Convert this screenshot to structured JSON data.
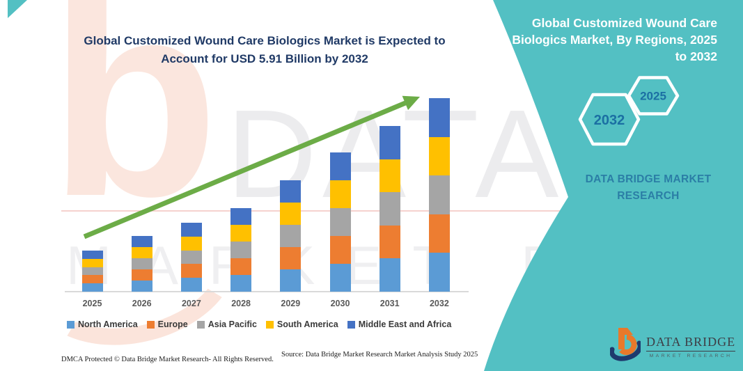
{
  "title": {
    "text": "Global Customized Wound Care Biologics Market is Expected to Account for USD 5.91 Billion by 2032"
  },
  "chart_data": {
    "type": "bar",
    "stacked": true,
    "unit": "USD Billion",
    "title": "Global Customized Wound Care Biologics Market is Expected to Account for USD 5.91 Billion by 2032",
    "categories": [
      "2025",
      "2026",
      "2027",
      "2028",
      "2029",
      "2030",
      "2031",
      "2032"
    ],
    "series": [
      {
        "name": "North America",
        "color": "#5B9BD5",
        "values": [
          0.25,
          0.34,
          0.42,
          0.51,
          0.68,
          0.85,
          1.01,
          1.18
        ]
      },
      {
        "name": "Europe",
        "color": "#ED7D31",
        "values": [
          0.25,
          0.34,
          0.42,
          0.51,
          0.68,
          0.85,
          1.01,
          1.18
        ]
      },
      {
        "name": "Asia Pacific",
        "color": "#A5A5A5",
        "values": [
          0.25,
          0.34,
          0.42,
          0.51,
          0.68,
          0.85,
          1.01,
          1.18
        ]
      },
      {
        "name": "South America",
        "color": "#FFC000",
        "values": [
          0.25,
          0.34,
          0.42,
          0.51,
          0.68,
          0.85,
          1.01,
          1.18
        ]
      },
      {
        "name": "Middle East and Africa",
        "color": "#4472C4",
        "values": [
          0.25,
          0.34,
          0.42,
          0.51,
          0.68,
          0.85,
          1.01,
          1.18
        ]
      }
    ],
    "totals": [
      1.27,
      1.71,
      2.12,
      2.56,
      3.38,
      4.25,
      5.07,
      5.91
    ],
    "xlabel": "",
    "ylabel": "",
    "ylim": [
      0,
      5.91
    ],
    "grid": false,
    "legend_position": "bottom",
    "annotations": [
      "upward trend arrow from 2025 to 2032"
    ]
  },
  "side_panel": {
    "title": "Global Customized Wound Care Biologics Market, By Regions, 2025 to 2032",
    "hexagon_back_year": "2025",
    "hexagon_front_year": "2032",
    "brand_text": "DATA BRIDGE MARKET RESEARCH",
    "background_color": "#53C0C3"
  },
  "logo": {
    "brand": "DATA BRIDGE",
    "tagline": "MARKET RESEARCH"
  },
  "footer": {
    "dmca": "DMCA Protected © Data Bridge Market Research-  All Rights Reserved.",
    "source": "Source: Data Bridge Market Research  Market Analysis Study 2025"
  },
  "watermark": {
    "letter": "b",
    "row1": "DATA BRIDGE",
    "row2": "MARKET RESEARCH"
  },
  "colors": {
    "teal": "#53C0C3",
    "arrow_green": "#6CAC47",
    "title_navy": "#203A66",
    "hex_label_blue": "#1B6FA3",
    "panel_brand_blue": "#2B7EA6"
  }
}
